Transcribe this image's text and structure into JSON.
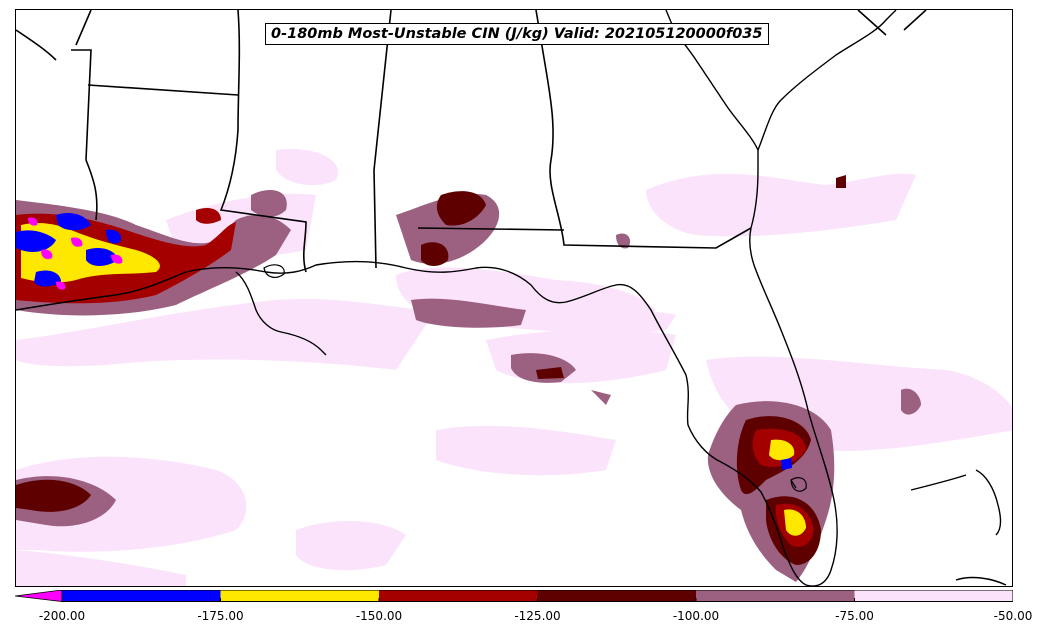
{
  "title": "0-180mb Most-Unstable CIN (J/kg) Valid: 202105120000f035",
  "colorbar": {
    "bins": [
      {
        "from": -200,
        "to": -175,
        "color": "#0000ff"
      },
      {
        "from": -175,
        "to": -150,
        "color": "#ffe800"
      },
      {
        "from": -150,
        "to": -125,
        "color": "#a50000"
      },
      {
        "from": -125,
        "to": -100,
        "color": "#5e0000"
      },
      {
        "from": -100,
        "to": -75,
        "color": "#9c6080"
      },
      {
        "from": -75,
        "to": -50,
        "color": "#fbe3fb"
      }
    ],
    "extend_below_color": "#ff00ff",
    "ticks": [
      "-200.00",
      "-175.00",
      "-150.00",
      "-125.00",
      "-100.00",
      "-75.00",
      "-50.00"
    ]
  },
  "colors": {
    "land_boundary": "#000000",
    "background": "#ffffff"
  }
}
